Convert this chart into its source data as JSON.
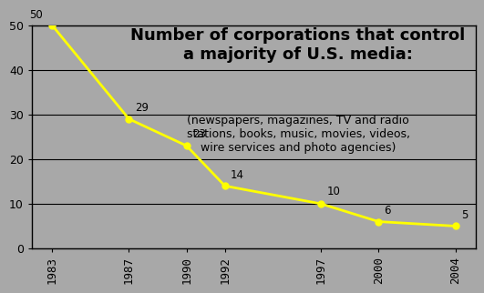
{
  "years": [
    1983,
    1987,
    1990,
    1992,
    1997,
    2000,
    2004
  ],
  "values": [
    50,
    29,
    23,
    14,
    10,
    6,
    5
  ],
  "line_color": "#ffff00",
  "marker_color": "#ffff00",
  "bg_color": "#a8a8a8",
  "title_line1": "Number of corporations that control",
  "title_line2": "a majority of U.S. media:",
  "subtitle": "(newspapers, magazines, TV and radio\nstations, books, music, movies, videos,\nwire services and photo agencies)",
  "ylim": [
    0,
    50
  ],
  "yticks": [
    0,
    10,
    20,
    30,
    40,
    50
  ],
  "title_fontsize": 13,
  "subtitle_fontsize": 9,
  "label_fontsize": 8.5,
  "tick_fontsize": 9
}
